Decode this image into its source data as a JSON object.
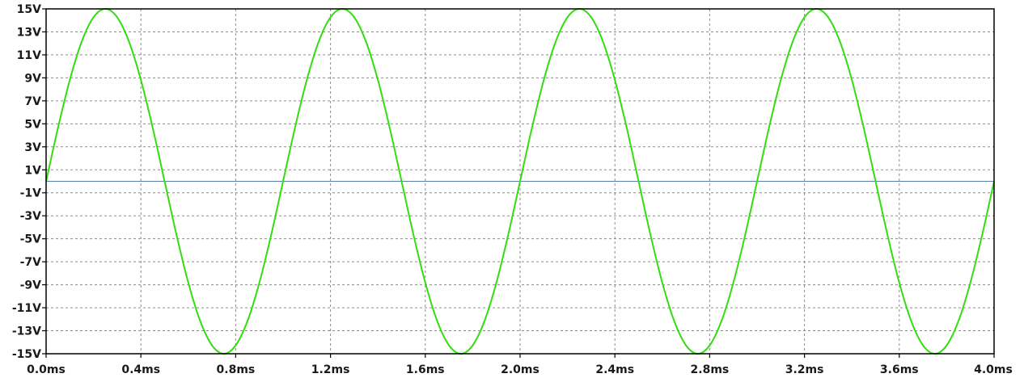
{
  "chart_data": {
    "type": "line",
    "title": "",
    "xlabel": "",
    "ylabel": "",
    "xlim": [
      0,
      4.0
    ],
    "ylim": [
      -15,
      15
    ],
    "x_unit": "ms",
    "y_unit": "V",
    "x_ticks": [
      "0.0ms",
      "0.4ms",
      "0.8ms",
      "1.2ms",
      "1.6ms",
      "2.0ms",
      "2.4ms",
      "2.8ms",
      "3.2ms",
      "3.6ms",
      "4.0ms"
    ],
    "y_ticks": [
      "15V",
      "13V",
      "11V",
      "9V",
      "7V",
      "5V",
      "3V",
      "1V",
      "-1V",
      "-3V",
      "-5V",
      "-7V",
      "-9V",
      "-11V",
      "-13V",
      "-15V"
    ],
    "grid": true,
    "zero_line": {
      "y": 0,
      "color": "#5b7fb5"
    },
    "series": [
      {
        "color": "#33dd11",
        "x": [
          0.0,
          0.05,
          0.1,
          0.15,
          0.2,
          0.25,
          0.3,
          0.35,
          0.4,
          0.45,
          0.5,
          0.55,
          0.6,
          0.65,
          0.7,
          0.75,
          0.8,
          0.85,
          0.9,
          0.95,
          1.0,
          1.05,
          1.1,
          1.15,
          1.2,
          1.25,
          1.3,
          1.35,
          1.4,
          1.45,
          1.5,
          1.55,
          1.6,
          1.65,
          1.7,
          1.75,
          1.8,
          1.85,
          1.9,
          1.95,
          2.0,
          2.05,
          2.1,
          2.15,
          2.2,
          2.25,
          2.3,
          2.35,
          2.4,
          2.45,
          2.5,
          2.55,
          2.6,
          2.65,
          2.7,
          2.75,
          2.8,
          2.85,
          2.9,
          2.95,
          3.0,
          3.05,
          3.1,
          3.15,
          3.2,
          3.25,
          3.3,
          3.35,
          3.4,
          3.45,
          3.5,
          3.55,
          3.6,
          3.65,
          3.7,
          3.75,
          3.8,
          3.85,
          3.9,
          3.95,
          4.0
        ],
        "y": [
          0.0,
          4.64,
          8.82,
          12.14,
          14.27,
          15.0,
          14.27,
          12.14,
          8.82,
          4.64,
          0.0,
          -4.64,
          -8.82,
          -12.14,
          -14.27,
          -15.0,
          -14.27,
          -12.14,
          -8.82,
          -4.64,
          0.0,
          4.64,
          8.82,
          12.14,
          14.27,
          15.0,
          14.27,
          12.14,
          8.82,
          4.64,
          0.0,
          -4.64,
          -8.82,
          -12.14,
          -14.27,
          -15.0,
          -14.27,
          -12.14,
          -8.82,
          -4.64,
          0.0,
          4.64,
          8.82,
          12.14,
          14.27,
          15.0,
          14.27,
          12.14,
          8.82,
          4.64,
          0.0,
          -4.64,
          -8.82,
          -12.14,
          -14.27,
          -15.0,
          -14.27,
          -12.14,
          -8.82,
          -4.64,
          0.0,
          4.64,
          8.82,
          12.14,
          14.27,
          15.0,
          14.27,
          12.14,
          8.82,
          4.64,
          0.0,
          -4.64,
          -8.82,
          -12.14,
          -14.27,
          -15.0,
          -14.27,
          -12.14,
          -8.82,
          -4.64,
          0.0
        ]
      }
    ]
  }
}
